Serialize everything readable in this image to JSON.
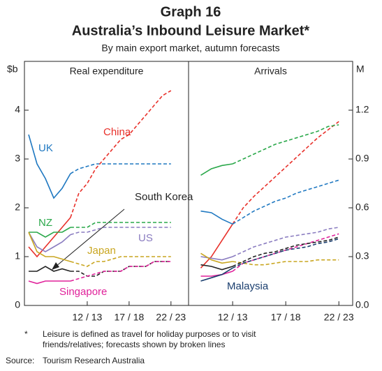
{
  "title": "Graph 16",
  "subtitle": "Australia’s Inbound Leisure Market*",
  "caption": "By main export market, autumn forecasts",
  "note_marker": "*",
  "note": [
    "Leisure is defined as travel for holiday purposes or to visit",
    "friends/relatives; forecasts shown by broken lines"
  ],
  "source_label": "Source:",
  "source": "Tourism Research Australia",
  "chart_data": [
    {
      "type": "line",
      "title": "Real expenditure",
      "y_label": "$b",
      "xlim": [
        2004.5,
        2024.1
      ],
      "xticks": [
        {
          "value": 2012,
          "label": "12 / 13"
        },
        {
          "value": 2017,
          "label": "17 / 18"
        },
        {
          "value": 2022,
          "label": "22 / 23"
        }
      ],
      "ylim": [
        0,
        5
      ],
      "yticks": [
        0,
        1,
        2,
        3,
        4
      ],
      "forecast_from": 2010,
      "x": [
        2005,
        2006,
        2007,
        2008,
        2009,
        2010,
        2011,
        2012,
        2013,
        2014,
        2015,
        2016,
        2017,
        2018,
        2019,
        2020,
        2021,
        2022
      ],
      "series": [
        {
          "name": "UK",
          "color": "#1f78c1",
          "values": [
            3.5,
            2.9,
            2.6,
            2.2,
            2.4,
            2.7,
            2.8,
            2.85,
            2.9,
            2.9,
            2.9,
            2.9,
            2.9,
            2.9,
            2.9,
            2.9,
            2.9,
            2.9
          ]
        },
        {
          "name": "China",
          "color": "#e8302a",
          "values": [
            1.2,
            1.0,
            1.2,
            1.4,
            1.6,
            1.8,
            2.3,
            2.5,
            2.8,
            3.0,
            3.2,
            3.4,
            3.5,
            3.7,
            3.9,
            4.1,
            4.3,
            4.4
          ]
        },
        {
          "name": "NZ",
          "color": "#2aa84a",
          "values": [
            1.5,
            1.5,
            1.4,
            1.5,
            1.5,
            1.6,
            1.6,
            1.6,
            1.7,
            1.7,
            1.7,
            1.7,
            1.7,
            1.7,
            1.7,
            1.7,
            1.7,
            1.7
          ]
        },
        {
          "name": "US",
          "color": "#8a7cc0",
          "values": [
            1.5,
            1.2,
            1.1,
            1.2,
            1.3,
            1.45,
            1.5,
            1.5,
            1.55,
            1.6,
            1.6,
            1.6,
            1.6,
            1.6,
            1.6,
            1.6,
            1.6,
            1.6
          ]
        },
        {
          "name": "Japan",
          "color": "#c9a620",
          "values": [
            1.5,
            1.1,
            1.0,
            1.0,
            0.95,
            0.9,
            0.85,
            0.8,
            0.9,
            0.9,
            0.95,
            1.0,
            1.0,
            1.0,
            1.0,
            1.0,
            1.0,
            1.0
          ]
        },
        {
          "name": "South Korea",
          "color": "#222222",
          "values": [
            0.7,
            0.7,
            0.8,
            0.7,
            0.75,
            0.7,
            0.7,
            0.6,
            0.6,
            0.7,
            0.7,
            0.7,
            0.8,
            0.8,
            0.8,
            0.9,
            0.9,
            0.9
          ]
        },
        {
          "name": "Singapore",
          "color": "#e0219a",
          "values": [
            0.5,
            0.45,
            0.5,
            0.5,
            0.5,
            0.5,
            0.55,
            0.6,
            0.65,
            0.7,
            0.7,
            0.7,
            0.8,
            0.8,
            0.8,
            0.9,
            0.9,
            0.9
          ]
        }
      ]
    },
    {
      "type": "line",
      "title": "Arrivals",
      "y_label": "M",
      "xlim": [
        2007.85,
        2023.3
      ],
      "xticks": [
        {
          "value": 2012,
          "label": "12 / 13"
        },
        {
          "value": 2017,
          "label": "17 / 18"
        },
        {
          "value": 2022,
          "label": "22 / 23"
        }
      ],
      "ylim": [
        0,
        1.5
      ],
      "yticks": [
        {
          "value": 0,
          "label": "0.0"
        },
        0.3,
        0.6,
        0.9,
        1.2
      ],
      "forecast_from": 2012,
      "x": [
        2009,
        2010,
        2011,
        2012,
        2013,
        2014,
        2015,
        2016,
        2017,
        2018,
        2019,
        2020,
        2021,
        2022
      ],
      "series": [
        {
          "name": "China",
          "color": "#e8302a",
          "values": [
            0.23,
            0.3,
            0.4,
            0.5,
            0.6,
            0.67,
            0.73,
            0.79,
            0.85,
            0.91,
            0.97,
            1.03,
            1.08,
            1.13
          ]
        },
        {
          "name": "NZ",
          "color": "#2aa84a",
          "values": [
            0.8,
            0.84,
            0.86,
            0.87,
            0.9,
            0.93,
            0.96,
            0.99,
            1.01,
            1.03,
            1.05,
            1.07,
            1.1,
            1.11
          ]
        },
        {
          "name": "UK",
          "color": "#1f78c1",
          "values": [
            0.58,
            0.57,
            0.53,
            0.5,
            0.54,
            0.58,
            0.61,
            0.64,
            0.66,
            0.69,
            0.71,
            0.73,
            0.75,
            0.77
          ]
        },
        {
          "name": "US",
          "color": "#8a7cc0",
          "values": [
            0.3,
            0.29,
            0.28,
            0.3,
            0.33,
            0.36,
            0.38,
            0.4,
            0.42,
            0.43,
            0.44,
            0.45,
            0.47,
            0.48
          ]
        },
        {
          "name": "Japan",
          "color": "#c9a620",
          "values": [
            0.32,
            0.28,
            0.26,
            0.27,
            0.26,
            0.25,
            0.25,
            0.26,
            0.27,
            0.27,
            0.27,
            0.28,
            0.28,
            0.28
          ]
        },
        {
          "name": "Singapore",
          "color": "#e0219a",
          "values": [
            0.18,
            0.18,
            0.19,
            0.21,
            0.26,
            0.28,
            0.3,
            0.32,
            0.34,
            0.36,
            0.38,
            0.4,
            0.42,
            0.44
          ]
        },
        {
          "name": "South Korea",
          "color": "#222222",
          "values": [
            0.25,
            0.24,
            0.22,
            0.24,
            0.27,
            0.3,
            0.32,
            0.33,
            0.35,
            0.37,
            0.38,
            0.39,
            0.4,
            0.42
          ]
        },
        {
          "name": "Malaysia",
          "color": "#1a3e6e",
          "values": [
            0.15,
            0.17,
            0.19,
            0.23,
            0.26,
            0.28,
            0.3,
            0.32,
            0.34,
            0.35,
            0.36,
            0.38,
            0.39,
            0.41
          ]
        }
      ]
    }
  ]
}
